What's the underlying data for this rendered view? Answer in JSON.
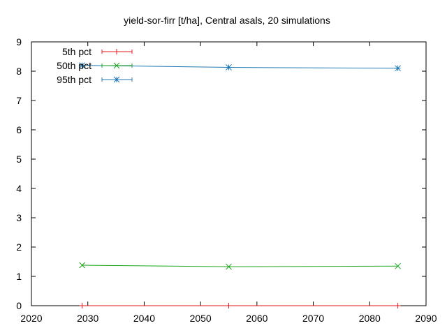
{
  "chart_data": {
    "type": "line",
    "title": "yield-sor-firr [t/ha], Central asals, 20 simulations",
    "xlabel": "",
    "ylabel": "",
    "xlim": [
      2020,
      2090
    ],
    "ylim": [
      0,
      9
    ],
    "xticks": [
      "2020",
      "2030",
      "2040",
      "2050",
      "2060",
      "2070",
      "2080",
      "2090"
    ],
    "yticks": [
      "0",
      "1",
      "2",
      "3",
      "4",
      "5",
      "6",
      "7",
      "8",
      "9"
    ],
    "grid": false,
    "legend_position": "top-left",
    "x": [
      2029,
      2055,
      2085
    ],
    "series": [
      {
        "name": "5th pct",
        "color": "#e41a1c",
        "marker": "plus",
        "values": [
          0.0,
          0.0,
          0.0
        ]
      },
      {
        "name": "50th pct",
        "color": "#1aa51a",
        "marker": "cross",
        "values": [
          1.38,
          1.33,
          1.35
        ]
      },
      {
        "name": "95th pct",
        "color": "#1f78b4",
        "marker": "star",
        "values": [
          8.2,
          8.13,
          8.1
        ]
      }
    ]
  }
}
